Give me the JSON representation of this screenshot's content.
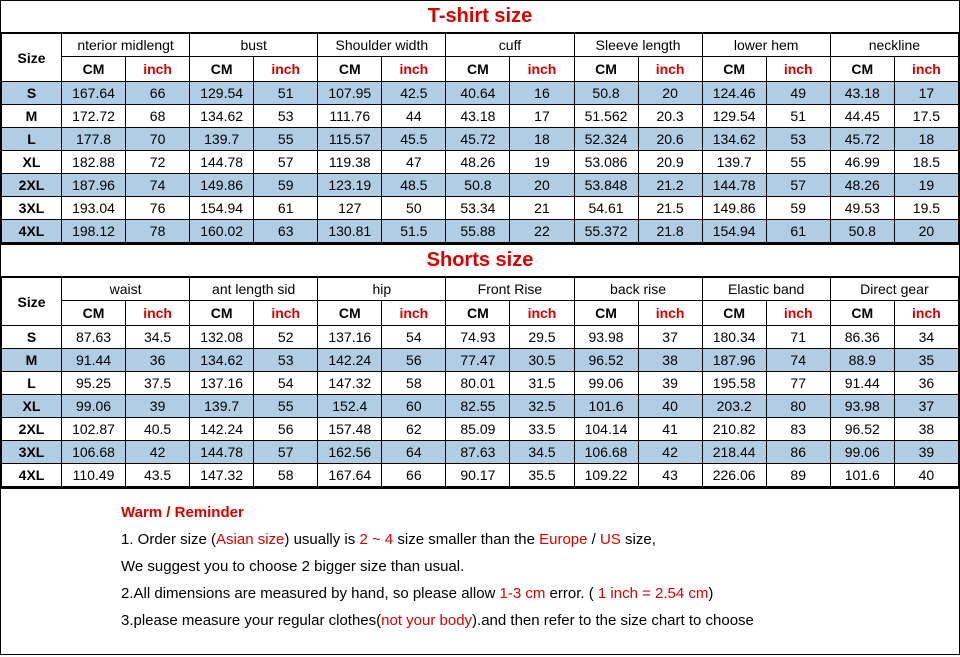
{
  "tshirt": {
    "title": "T-shirt size",
    "title_color": "#d90000",
    "size_header": "Size",
    "cm_label": "CM",
    "inch_label": "inch",
    "inch_color": "#d90000",
    "groups": [
      "nterior midlengt",
      "bust",
      "Shoulder width",
      "cuff",
      "Sleeve length",
      "lower hem",
      "neckline"
    ],
    "sizes": [
      "S",
      "M",
      "L",
      "XL",
      "2XL",
      "3XL",
      "4XL"
    ],
    "rows": [
      [
        "167.64",
        "66",
        "129.54",
        "51",
        "107.95",
        "42.5",
        "40.64",
        "16",
        "50.8",
        "20",
        "124.46",
        "49",
        "43.18",
        "17"
      ],
      [
        "172.72",
        "68",
        "134.62",
        "53",
        "111.76",
        "44",
        "43.18",
        "17",
        "51.562",
        "20.3",
        "129.54",
        "51",
        "44.45",
        "17.5"
      ],
      [
        "177.8",
        "70",
        "139.7",
        "55",
        "115.57",
        "45.5",
        "45.72",
        "18",
        "52.324",
        "20.6",
        "134.62",
        "53",
        "45.72",
        "18"
      ],
      [
        "182.88",
        "72",
        "144.78",
        "57",
        "119.38",
        "47",
        "48.26",
        "19",
        "53.086",
        "20.9",
        "139.7",
        "55",
        "46.99",
        "18.5"
      ],
      [
        "187.96",
        "74",
        "149.86",
        "59",
        "123.19",
        "48.5",
        "50.8",
        "20",
        "53.848",
        "21.2",
        "144.78",
        "57",
        "48.26",
        "19"
      ],
      [
        "193.04",
        "76",
        "154.94",
        "61",
        "127",
        "50",
        "53.34",
        "21",
        "54.61",
        "21.5",
        "149.86",
        "59",
        "49.53",
        "19.5"
      ],
      [
        "198.12",
        "78",
        "160.02",
        "63",
        "130.81",
        "51.5",
        "55.88",
        "22",
        "55.372",
        "21.8",
        "154.94",
        "61",
        "50.8",
        "20"
      ]
    ],
    "banded_rows": [
      0,
      2,
      4,
      6
    ]
  },
  "shorts": {
    "title": "Shorts size",
    "title_color": "#d90000",
    "size_header": "Size",
    "cm_label": "CM",
    "inch_label": "inch",
    "inch_color": "#d90000",
    "groups": [
      "waist",
      "ant length sid",
      "hip",
      "Front Rise",
      "back rise",
      "Elastic band",
      "Direct gear"
    ],
    "sizes": [
      "S",
      "M",
      "L",
      "XL",
      "2XL",
      "3XL",
      "4XL"
    ],
    "rows": [
      [
        "87.63",
        "34.5",
        "132.08",
        "52",
        "137.16",
        "54",
        "74.93",
        "29.5",
        "93.98",
        "37",
        "180.34",
        "71",
        "86.36",
        "34"
      ],
      [
        "91.44",
        "36",
        "134.62",
        "53",
        "142.24",
        "56",
        "77.47",
        "30.5",
        "96.52",
        "38",
        "187.96",
        "74",
        "88.9",
        "35"
      ],
      [
        "95.25",
        "37.5",
        "137.16",
        "54",
        "147.32",
        "58",
        "80.01",
        "31.5",
        "99.06",
        "39",
        "195.58",
        "77",
        "91.44",
        "36"
      ],
      [
        "99.06",
        "39",
        "139.7",
        "55",
        "152.4",
        "60",
        "82.55",
        "32.5",
        "101.6",
        "40",
        "203.2",
        "80",
        "93.98",
        "37"
      ],
      [
        "102.87",
        "40.5",
        "142.24",
        "56",
        "157.48",
        "62",
        "85.09",
        "33.5",
        "104.14",
        "41",
        "210.82",
        "83",
        "96.52",
        "38"
      ],
      [
        "106.68",
        "42",
        "144.78",
        "57",
        "162.56",
        "64",
        "87.63",
        "34.5",
        "106.68",
        "42",
        "218.44",
        "86",
        "99.06",
        "39"
      ],
      [
        "110.49",
        "43.5",
        "147.32",
        "58",
        "167.64",
        "66",
        "90.17",
        "35.5",
        "109.22",
        "43",
        "226.06",
        "89",
        "101.6",
        "40"
      ]
    ],
    "banded_rows": [
      1,
      3,
      5
    ]
  },
  "reminder": {
    "title": "Warm / Reminder",
    "title_color": "#d90000",
    "line1_a": "1.  Order size (",
    "line1_b": "Asian size",
    "line1_c": ") usually is ",
    "line1_d": "2 ~ 4",
    "line1_e": " size smaller than the ",
    "line1_f": "Europe",
    "line1_g": " / ",
    "line1_h": "US",
    "line1_i": " size,",
    "line2": "We suggest you to choose 2 bigger size than usual.",
    "line3_a": "2.All dimensions are measured by hand, so please allow ",
    "line3_b": "1-3 cm",
    "line3_c": " error. ( ",
    "line3_d": "1 inch = 2.54 cm",
    "line3_e": ")",
    "line4_a": "3.please measure your regular clothes(",
    "line4_b": "not your body",
    "line4_c": ").and then refer to the size chart to choose"
  }
}
